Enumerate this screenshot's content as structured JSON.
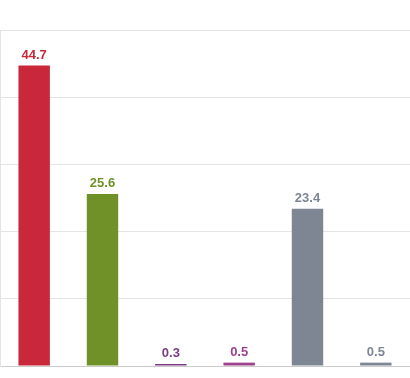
{
  "chart_data": {
    "type": "bar",
    "categories": [
      null,
      null,
      null,
      null,
      null,
      null
    ],
    "values": [
      44.7,
      25.6,
      0.3,
      0.5,
      23.4,
      0.5
    ],
    "colors": [
      "#c8283a",
      "#6f9128",
      "#7b3b82",
      "#a0418f",
      "#7e8593",
      "#7e8593"
    ],
    "ylim": [
      0,
      50
    ],
    "yticks": [
      0,
      10,
      20,
      30,
      40,
      50
    ],
    "grid": true,
    "data_labels": true,
    "tick_labels": false
  }
}
